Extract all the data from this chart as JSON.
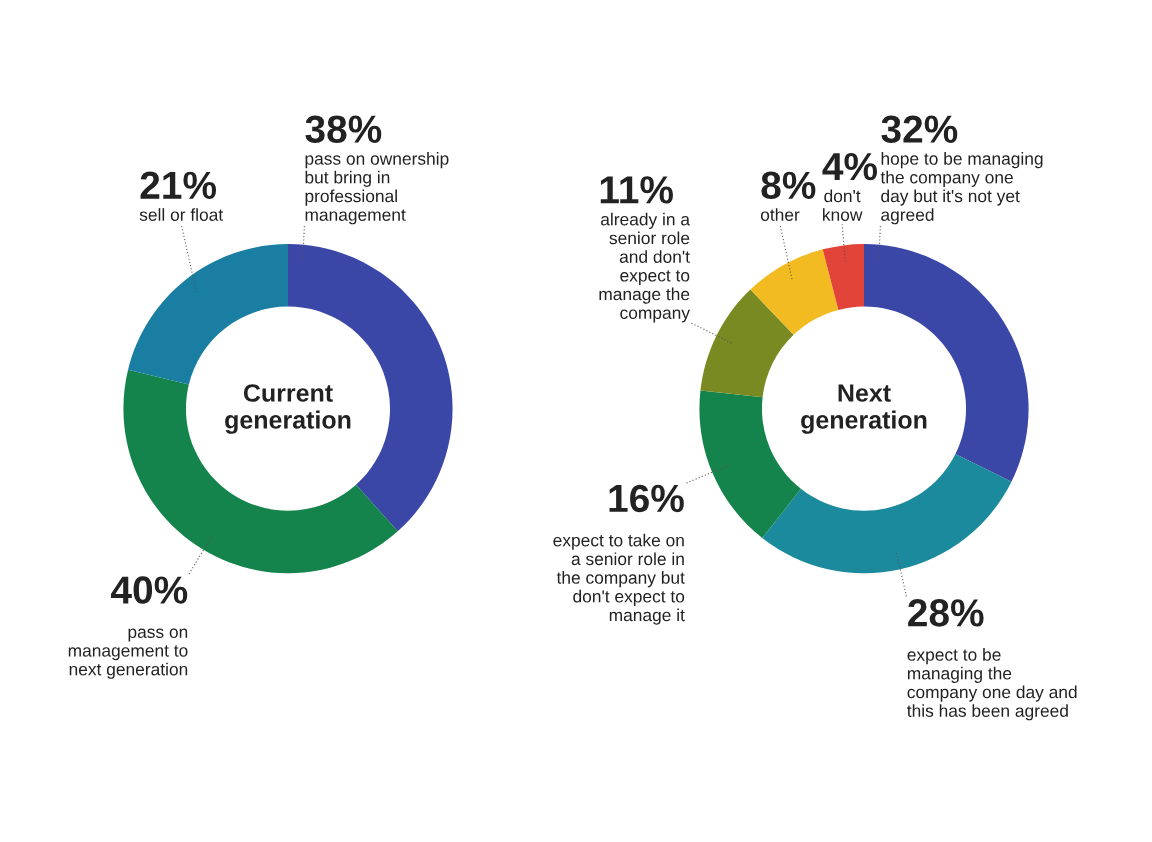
{
  "chart_data": [
    {
      "type": "donut",
      "title": "Current\ngeneration",
      "categories": [
        "pass on ownership\nbut bring in\nprofessional\nmanagement",
        "pass on\nmanagement to\nnext generation",
        "sell or float"
      ],
      "values": [
        38,
        40,
        21
      ],
      "value_labels": [
        "38%",
        "40%",
        "21%"
      ],
      "colors": [
        "#3b47a6",
        "#14844c",
        "#1a7ea2"
      ]
    },
    {
      "type": "donut",
      "title": "Next\ngeneration",
      "categories": [
        "hope to be managing\nthe company one\nday but it's not yet\nagreed",
        "expect to be\nmanaging the\ncompany one day and\nthis has been agreed",
        "expect to take on\na senior role in\nthe company but\ndon't expect to\nmanage it",
        "already in a\nsenior role\nand don't\nexpect to\nmanage the\ncompany",
        "other",
        "don't\nknow"
      ],
      "values": [
        32,
        28,
        16,
        11,
        8,
        4
      ],
      "value_labels": [
        "32%",
        "28%",
        "16%",
        "11%",
        "8%",
        "4%"
      ],
      "colors": [
        "#3b47a6",
        "#1b8a9c",
        "#14844c",
        "#7a8a22",
        "#f2bb22",
        "#e3443a"
      ]
    }
  ]
}
